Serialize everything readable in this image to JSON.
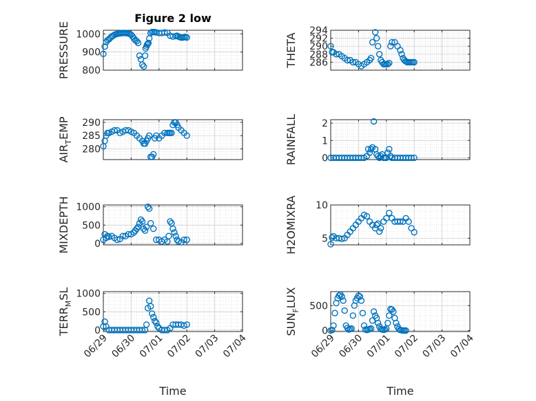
{
  "colors": {
    "marker": "#0072BD",
    "axis": "#262626",
    "grid": "#d9d9d9"
  },
  "chart_data": [
    {
      "type": "scatter",
      "title": "Figure 2 low",
      "ylabel": "PRESSURE",
      "xlabel": "",
      "ylim": [
        800,
        1020
      ],
      "yticks": [
        800,
        900,
        1000
      ],
      "xlim": [
        0,
        5
      ],
      "xticks": [
        0,
        1,
        2,
        3,
        4,
        5
      ],
      "xticklabels": [],
      "grid": true,
      "x": [
        0,
        0.05,
        0.1,
        0.15,
        0.2,
        0.25,
        0.3,
        0.35,
        0.4,
        0.45,
        0.5,
        0.55,
        0.6,
        0.65,
        0.7,
        0.75,
        0.8,
        0.85,
        0.9,
        0.95,
        1.0,
        1.05,
        1.1,
        1.15,
        1.2,
        1.25,
        1.3,
        1.35,
        1.4,
        1.45,
        1.5,
        1.52,
        1.55,
        1.57,
        1.6,
        1.62,
        1.65,
        1.7,
        1.75,
        1.8,
        1.85,
        1.9,
        2.0,
        2.1,
        2.2,
        2.3,
        2.4,
        2.5,
        2.6,
        2.65,
        2.7,
        2.75,
        2.8,
        2.85,
        2.9,
        2.95,
        3.0
      ],
      "y": [
        890,
        930,
        955,
        965,
        970,
        978,
        985,
        990,
        995,
        998,
        1000,
        1002,
        1003,
        1004,
        1005,
        1005,
        1005,
        1004,
        1002,
        1000,
        995,
        985,
        975,
        965,
        960,
        950,
        880,
        860,
        830,
        820,
        880,
        920,
        930,
        940,
        945,
        950,
        975,
        1005,
        1010,
        1010,
        1010,
        1008,
        1005,
        1005,
        1008,
        1006,
        990,
        985,
        988,
        990,
        985,
        982,
        980,
        980,
        982,
        983,
        980
      ]
    },
    {
      "type": "scatter",
      "title": "",
      "ylabel": "THETA",
      "xlabel": "",
      "ylim": [
        284,
        294
      ],
      "yticks": [
        286,
        288,
        290,
        292,
        294
      ],
      "xlim": [
        0,
        5
      ],
      "xticks": [
        0,
        1,
        2,
        3,
        4,
        5
      ],
      "xticklabels": [],
      "grid": true,
      "x": [
        0,
        0.05,
        0.1,
        0.2,
        0.3,
        0.4,
        0.5,
        0.6,
        0.7,
        0.8,
        0.9,
        1.0,
        1.1,
        1.2,
        1.3,
        1.4,
        1.45,
        1.5,
        1.6,
        1.65,
        1.7,
        1.75,
        1.8,
        1.85,
        1.9,
        1.95,
        2.0,
        2.05,
        2.1,
        2.15,
        2.2,
        2.3,
        2.4,
        2.5,
        2.55,
        2.6,
        2.65,
        2.7,
        2.75,
        2.8,
        2.85,
        2.9,
        2.95,
        3.0
      ],
      "y": [
        290,
        288.5,
        288.5,
        288,
        288,
        287.5,
        287,
        286.5,
        286.5,
        286,
        286,
        285.5,
        285,
        285.5,
        286,
        286.5,
        287,
        291,
        293.5,
        292,
        290,
        288,
        286.5,
        286,
        285.5,
        285.5,
        285.5,
        285.5,
        285.8,
        290,
        291,
        291,
        290,
        289,
        288,
        287,
        286.5,
        286.2,
        286,
        286,
        286,
        286,
        286,
        286
      ]
    },
    {
      "type": "scatter",
      "title": "",
      "ylabel": "AIR_TEMP",
      "xlabel": "",
      "ylim": [
        276,
        291
      ],
      "yticks": [
        280,
        285,
        290
      ],
      "xlim": [
        0,
        5
      ],
      "xticks": [
        0,
        1,
        2,
        3,
        4,
        5
      ],
      "xticklabels": [],
      "grid": true,
      "x": [
        0,
        0.05,
        0.1,
        0.15,
        0.2,
        0.3,
        0.4,
        0.5,
        0.6,
        0.7,
        0.8,
        0.9,
        1.0,
        1.1,
        1.2,
        1.3,
        1.4,
        1.45,
        1.5,
        1.55,
        1.6,
        1.65,
        1.7,
        1.75,
        1.8,
        1.85,
        1.9,
        2.0,
        2.1,
        2.2,
        2.3,
        2.35,
        2.4,
        2.45,
        2.5,
        2.55,
        2.6,
        2.65,
        2.7,
        2.8,
        2.9,
        3.0
      ],
      "y": [
        281,
        283,
        285,
        286,
        286,
        286.5,
        287,
        287,
        286,
        286.5,
        287,
        287,
        286.5,
        286,
        285,
        284,
        283,
        282,
        282,
        283,
        284,
        285,
        277,
        277,
        278,
        284,
        285,
        284,
        285,
        286,
        286,
        286,
        286,
        286,
        289,
        290,
        290,
        289,
        288,
        287,
        286,
        285
      ]
    },
    {
      "type": "scatter",
      "title": "",
      "ylabel": "RAINFALL",
      "xlabel": "",
      "ylim": [
        -0.1,
        2.2
      ],
      "yticks": [
        0,
        1,
        2
      ],
      "xlim": [
        0,
        5
      ],
      "xticks": [
        0,
        1,
        2,
        3,
        4,
        5
      ],
      "xticklabels": [],
      "grid": true,
      "x": [
        0,
        0.1,
        0.2,
        0.3,
        0.4,
        0.5,
        0.6,
        0.7,
        0.8,
        0.9,
        1.0,
        1.1,
        1.2,
        1.3,
        1.35,
        1.4,
        1.45,
        1.5,
        1.55,
        1.6,
        1.65,
        1.7,
        1.75,
        1.8,
        1.85,
        1.9,
        1.95,
        2.0,
        2.05,
        2.1,
        2.15,
        2.2,
        2.3,
        2.4,
        2.5,
        2.6,
        2.7,
        2.8,
        2.9,
        3.0
      ],
      "y": [
        0,
        0,
        0,
        0,
        0,
        0,
        0,
        0,
        0,
        0,
        0,
        0,
        0,
        0.1,
        0.5,
        0.3,
        0.5,
        0.6,
        2.1,
        0.5,
        0.2,
        0.1,
        0,
        0.1,
        0.2,
        0,
        0,
        0,
        0.3,
        0.5,
        0.1,
        0,
        0,
        0,
        0,
        0,
        0,
        0,
        0,
        0
      ]
    },
    {
      "type": "scatter",
      "title": "",
      "ylabel": "MIXDEPTH",
      "xlabel": "",
      "ylim": [
        -40,
        1050
      ],
      "yticks": [
        0,
        500,
        1000
      ],
      "xlim": [
        0,
        5
      ],
      "xticks": [
        0,
        1,
        2,
        3,
        4,
        5
      ],
      "xticklabels": [],
      "grid": true,
      "x": [
        0,
        0.05,
        0.1,
        0.15,
        0.2,
        0.3,
        0.4,
        0.5,
        0.6,
        0.7,
        0.8,
        0.9,
        1.0,
        1.1,
        1.15,
        1.2,
        1.25,
        1.3,
        1.35,
        1.4,
        1.45,
        1.5,
        1.55,
        1.6,
        1.65,
        1.7,
        1.8,
        1.9,
        2.0,
        2.1,
        2.2,
        2.3,
        2.35,
        2.4,
        2.45,
        2.5,
        2.55,
        2.6,
        2.65,
        2.7,
        2.8,
        2.9,
        3.0
      ],
      "y": [
        100,
        250,
        150,
        200,
        180,
        200,
        150,
        100,
        120,
        200,
        200,
        250,
        250,
        300,
        350,
        400,
        450,
        550,
        650,
        600,
        400,
        350,
        450,
        1000,
        950,
        550,
        400,
        100,
        100,
        50,
        100,
        50,
        200,
        600,
        550,
        400,
        300,
        200,
        100,
        50,
        30,
        100,
        100
      ]
    },
    {
      "type": "scatter",
      "title": "",
      "ylabel": "H2OMIXRA",
      "xlabel": "",
      "ylim": [
        4,
        10
      ],
      "yticks": [
        5,
        10
      ],
      "xlim": [
        0,
        5
      ],
      "xticks": [
        0,
        1,
        2,
        3,
        4,
        5
      ],
      "xticklabels": [],
      "grid": true,
      "x": [
        0,
        0.05,
        0.1,
        0.2,
        0.3,
        0.4,
        0.5,
        0.6,
        0.7,
        0.8,
        0.9,
        1.0,
        1.1,
        1.2,
        1.3,
        1.4,
        1.5,
        1.6,
        1.65,
        1.7,
        1.75,
        1.8,
        1.9,
        2.0,
        2.1,
        2.2,
        2.3,
        2.4,
        2.5,
        2.6,
        2.7,
        2.8,
        2.9,
        3.0
      ],
      "y": [
        4.1,
        5.1,
        5.3,
        5,
        5,
        4.9,
        5,
        5.5,
        6,
        6.5,
        7,
        7.5,
        8,
        8.5,
        8.3,
        7.5,
        7,
        6.5,
        7,
        7.2,
        6,
        6.5,
        7.5,
        8,
        8.8,
        8,
        7.5,
        7.5,
        7.5,
        7.5,
        8,
        7.5,
        6.5,
        5.9
      ]
    },
    {
      "type": "scatter",
      "title": "",
      "ylabel": "TERR_MSL",
      "xlabel": "Time",
      "ylim": [
        -40,
        1050
      ],
      "yticks": [
        0,
        500,
        1000
      ],
      "xlim": [
        0,
        5
      ],
      "xticks": [
        0,
        1,
        2,
        3,
        4,
        5
      ],
      "xticklabels": [
        "06/29",
        "06/30",
        "07/01",
        "07/02",
        "07/03",
        "07/04"
      ],
      "grid": true,
      "x": [
        0,
        0.05,
        0.1,
        0.2,
        0.3,
        0.4,
        0.5,
        0.6,
        0.7,
        0.8,
        0.9,
        1.0,
        1.1,
        1.2,
        1.3,
        1.4,
        1.5,
        1.55,
        1.6,
        1.65,
        1.7,
        1.75,
        1.8,
        1.85,
        1.9,
        1.95,
        2.0,
        2.1,
        2.2,
        2.3,
        2.4,
        2.5,
        2.6,
        2.7,
        2.8,
        2.9,
        3.0
      ],
      "y": [
        100,
        230,
        100,
        0,
        0,
        0,
        0,
        0,
        0,
        0,
        0,
        0,
        0,
        0,
        0,
        0,
        0,
        150,
        600,
        800,
        650,
        450,
        350,
        250,
        200,
        100,
        50,
        0,
        0,
        0,
        50,
        150,
        150,
        150,
        150,
        120,
        150
      ]
    },
    {
      "type": "scatter",
      "title": "",
      "ylabel": "SUN_FLUX",
      "xlabel": "Time",
      "ylim": [
        -20,
        780
      ],
      "yticks": [
        0,
        500
      ],
      "xlim": [
        0,
        5
      ],
      "xticks": [
        0,
        1,
        2,
        3,
        4,
        5
      ],
      "xticklabels": [
        "06/29",
        "06/30",
        "07/01",
        "07/02",
        "07/03",
        "07/04"
      ],
      "grid": true,
      "x": [
        0,
        0.05,
        0.1,
        0.15,
        0.2,
        0.25,
        0.3,
        0.35,
        0.4,
        0.45,
        0.5,
        0.55,
        0.6,
        0.65,
        0.7,
        0.75,
        0.8,
        0.85,
        0.9,
        0.95,
        1.0,
        1.05,
        1.1,
        1.15,
        1.2,
        1.25,
        1.3,
        1.35,
        1.4,
        1.45,
        1.5,
        1.55,
        1.6,
        1.65,
        1.7,
        1.75,
        1.8,
        1.85,
        1.9,
        1.95,
        2.0,
        2.05,
        2.1,
        2.15,
        2.2,
        2.25,
        2.3,
        2.35,
        2.4,
        2.45,
        2.5,
        2.55,
        2.6,
        2.65,
        2.7
      ],
      "y": [
        0,
        10,
        100,
        350,
        550,
        650,
        700,
        720,
        680,
        600,
        400,
        100,
        50,
        20,
        30,
        40,
        300,
        500,
        600,
        650,
        700,
        680,
        600,
        350,
        100,
        20,
        10,
        20,
        30,
        40,
        200,
        380,
        300,
        250,
        150,
        80,
        30,
        20,
        15,
        20,
        40,
        150,
        300,
        430,
        420,
        380,
        250,
        150,
        80,
        30,
        10,
        5,
        0,
        0,
        0
      ]
    }
  ]
}
